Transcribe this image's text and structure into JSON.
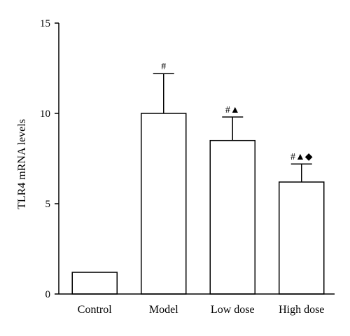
{
  "chart_data": {
    "type": "bar",
    "categories": [
      "Control",
      "Model",
      "Low dose",
      "High dose"
    ],
    "values": [
      1.2,
      10.0,
      8.5,
      6.2
    ],
    "errors": [
      0.05,
      2.2,
      1.3,
      1.0
    ],
    "annotations": [
      "",
      "#",
      "#▲",
      "#▲◆"
    ],
    "ylabel": "TLR4 mRNA levels",
    "xlabel": "",
    "ylim": [
      0,
      15
    ],
    "yticks": [
      0,
      5,
      10,
      15
    ],
    "grid": false,
    "bar_fill": "#ffffff",
    "stroke_color": "#000000"
  }
}
